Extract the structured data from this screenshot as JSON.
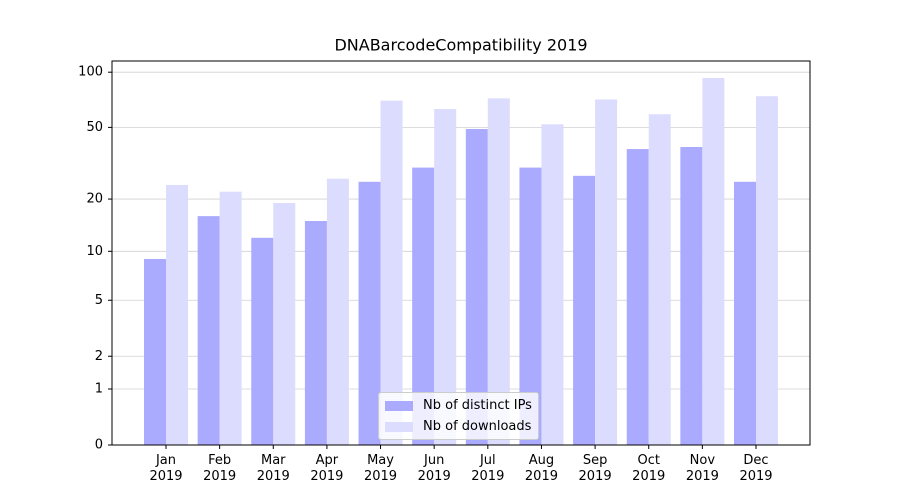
{
  "chart_data": {
    "type": "bar",
    "title": "DNABarcodeCompatibility 2019",
    "categories": [
      "Jan\n2019",
      "Feb\n2019",
      "Mar\n2019",
      "Apr\n2019",
      "May\n2019",
      "Jun\n2019",
      "Jul\n2019",
      "Aug\n2019",
      "Sep\n2019",
      "Oct\n2019",
      "Nov\n2019",
      "Dec\n2019"
    ],
    "series": [
      {
        "name": "Nb of distinct IPs",
        "color": "#aaaaff",
        "values": [
          9,
          16,
          12,
          15,
          25,
          30,
          49,
          30,
          27,
          38,
          39,
          25
        ]
      },
      {
        "name": "Nb of downloads",
        "color": "#dcdcff",
        "values": [
          24,
          22,
          19,
          26,
          70,
          63,
          72,
          52,
          71,
          59,
          93,
          74
        ]
      }
    ],
    "yscale": "symlog",
    "ylim": [
      0,
      115
    ],
    "yticks": [
      0,
      1,
      2,
      5,
      10,
      20,
      50,
      100
    ],
    "grid": true,
    "legend": "lower center"
  }
}
